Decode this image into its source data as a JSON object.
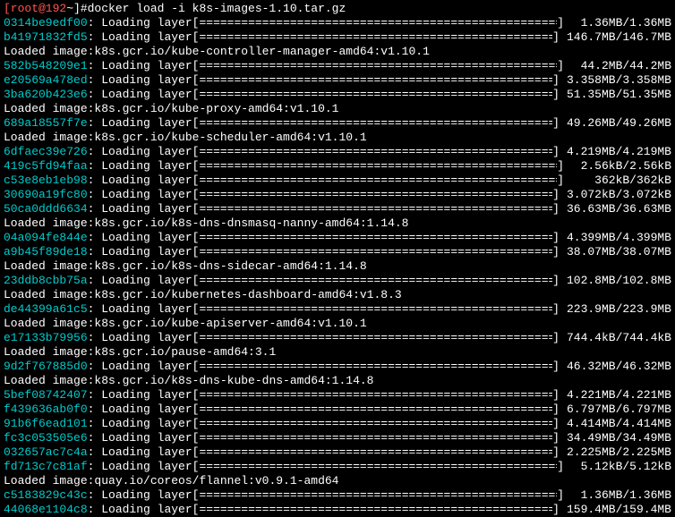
{
  "prompt": {
    "user_host": "[root@192 ",
    "tilde_hash": "~]# ",
    "command": "docker load -i k8s-images-1.10.tar.gz"
  },
  "rows": [
    {
      "t": "layer",
      "hash": "0314be9edf00",
      "size": "1.36MB/1.36MB"
    },
    {
      "t": "layer",
      "hash": "b41971832fd5",
      "size": "146.7MB/146.7MB"
    },
    {
      "t": "loaded",
      "image": "k8s.gcr.io/kube-controller-manager-amd64:v1.10.1"
    },
    {
      "t": "layer",
      "hash": "582b548209e1",
      "size": "44.2MB/44.2MB"
    },
    {
      "t": "layer",
      "hash": "e20569a478ed",
      "size": "3.358MB/3.358MB"
    },
    {
      "t": "layer",
      "hash": "3ba620b423e6",
      "size": "51.35MB/51.35MB"
    },
    {
      "t": "loaded",
      "image": "k8s.gcr.io/kube-proxy-amd64:v1.10.1"
    },
    {
      "t": "layer",
      "hash": "689a18557f7e",
      "size": "49.26MB/49.26MB"
    },
    {
      "t": "loaded",
      "image": "k8s.gcr.io/kube-scheduler-amd64:v1.10.1"
    },
    {
      "t": "layer",
      "hash": "6dfaec39e726",
      "size": "4.219MB/4.219MB"
    },
    {
      "t": "layer",
      "hash": "419c5fd94faa",
      "size": "2.56kB/2.56kB"
    },
    {
      "t": "layer",
      "hash": "c53e8eb1eb98",
      "size": "362kB/362kB"
    },
    {
      "t": "layer",
      "hash": "30690a19fc80",
      "size": "3.072kB/3.072kB"
    },
    {
      "t": "layer",
      "hash": "50ca0ddd6634",
      "size": "36.63MB/36.63MB"
    },
    {
      "t": "loaded",
      "image": "k8s.gcr.io/k8s-dns-dnsmasq-nanny-amd64:1.14.8"
    },
    {
      "t": "layer",
      "hash": "04a094fe844e",
      "size": "4.399MB/4.399MB"
    },
    {
      "t": "layer",
      "hash": "a9b45f89de18",
      "size": "38.07MB/38.07MB"
    },
    {
      "t": "loaded",
      "image": "k8s.gcr.io/k8s-dns-sidecar-amd64:1.14.8"
    },
    {
      "t": "layer",
      "hash": "23ddb8cbb75a",
      "size": "102.8MB/102.8MB"
    },
    {
      "t": "loaded",
      "image": "k8s.gcr.io/kubernetes-dashboard-amd64:v1.8.3"
    },
    {
      "t": "layer",
      "hash": "de44399a61c5",
      "size": "223.9MB/223.9MB"
    },
    {
      "t": "loaded",
      "image": "k8s.gcr.io/kube-apiserver-amd64:v1.10.1"
    },
    {
      "t": "layer",
      "hash": "e17133b79956",
      "size": "744.4kB/744.4kB"
    },
    {
      "t": "loaded",
      "image": "k8s.gcr.io/pause-amd64:3.1"
    },
    {
      "t": "layer",
      "hash": "9d2f767885d0",
      "size": "46.32MB/46.32MB"
    },
    {
      "t": "loaded",
      "image": "k8s.gcr.io/k8s-dns-kube-dns-amd64:1.14.8"
    },
    {
      "t": "layer",
      "hash": "5bef08742407",
      "size": "4.221MB/4.221MB"
    },
    {
      "t": "layer",
      "hash": "f439636ab0f0",
      "size": "6.797MB/6.797MB"
    },
    {
      "t": "layer",
      "hash": "91b6f6ead101",
      "size": "4.414MB/4.414MB"
    },
    {
      "t": "layer",
      "hash": "fc3c053505e6",
      "size": "34.49MB/34.49MB"
    },
    {
      "t": "layer",
      "hash": "032657ac7c4a",
      "size": "2.225MB/2.225MB"
    },
    {
      "t": "layer",
      "hash": "fd713c7c81af",
      "size": "5.12kB/5.12kB"
    },
    {
      "t": "loaded",
      "image": "quay.io/coreos/flannel:v0.9.1-amd64"
    },
    {
      "t": "layer",
      "hash": "c5183829c43c",
      "size": "1.36MB/1.36MB"
    },
    {
      "t": "layer",
      "hash": "44068e1104c8",
      "size": "159.4MB/159.4MB"
    }
  ],
  "labels": {
    "loading_layer": ": Loading layer ",
    "loaded_image": "Loaded image: ",
    "open_bracket": "[",
    "close_bracket": "]",
    "bar_fill": "=====================================================================>"
  },
  "colors": {
    "background": "#000000",
    "text": "#ffffff",
    "prompt_user": "#ff5555",
    "hash": "#00cccc"
  }
}
